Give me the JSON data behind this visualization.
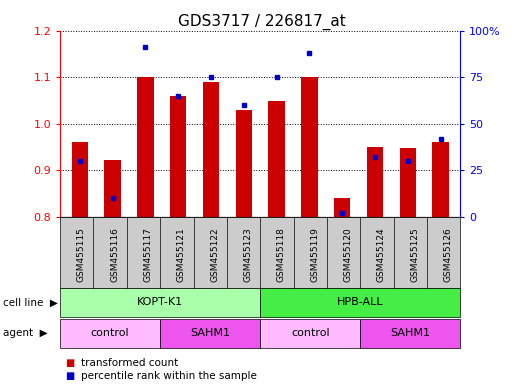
{
  "title": "GDS3717 / 226817_at",
  "samples": [
    "GSM455115",
    "GSM455116",
    "GSM455117",
    "GSM455121",
    "GSM455122",
    "GSM455123",
    "GSM455118",
    "GSM455119",
    "GSM455120",
    "GSM455124",
    "GSM455125",
    "GSM455126"
  ],
  "red_values": [
    0.96,
    0.922,
    1.1,
    1.06,
    1.09,
    1.03,
    1.05,
    1.1,
    0.84,
    0.95,
    0.948,
    0.96
  ],
  "blue_values": [
    30,
    10,
    91,
    65,
    75,
    60,
    75,
    88,
    2,
    32,
    30,
    42
  ],
  "ylim_left": [
    0.8,
    1.2
  ],
  "ylim_right": [
    0,
    100
  ],
  "yticks_left": [
    0.8,
    0.9,
    1.0,
    1.1,
    1.2
  ],
  "yticks_right": [
    0,
    25,
    50,
    75,
    100
  ],
  "yticklabels_right": [
    "0",
    "25",
    "50",
    "75",
    "100%"
  ],
  "bar_color": "#cc0000",
  "dot_color": "#0000cc",
  "bar_width": 0.5,
  "cell_line_groups": [
    {
      "label": "KOPT-K1",
      "start": 0,
      "end": 6,
      "color": "#aaffaa"
    },
    {
      "label": "HPB-ALL",
      "start": 6,
      "end": 12,
      "color": "#44ee44"
    }
  ],
  "agent_groups": [
    {
      "label": "control",
      "start": 0,
      "end": 3,
      "color": "#ffbbff"
    },
    {
      "label": "SAHM1",
      "start": 3,
      "end": 6,
      "color": "#ee55ee"
    },
    {
      "label": "control",
      "start": 6,
      "end": 9,
      "color": "#ffbbff"
    },
    {
      "label": "SAHM1",
      "start": 9,
      "end": 12,
      "color": "#ee55ee"
    }
  ],
  "legend_items": [
    {
      "label": "transformed count",
      "color": "#cc0000"
    },
    {
      "label": "percentile rank within the sample",
      "color": "#0000cc"
    }
  ],
  "cell_line_label": "cell line",
  "agent_label": "agent",
  "title_fontsize": 11,
  "tick_fontsize": 8,
  "xtick_fontsize": 6.5,
  "legend_fontsize": 7.5,
  "row_label_fontsize": 8,
  "row_content_fontsize": 8
}
